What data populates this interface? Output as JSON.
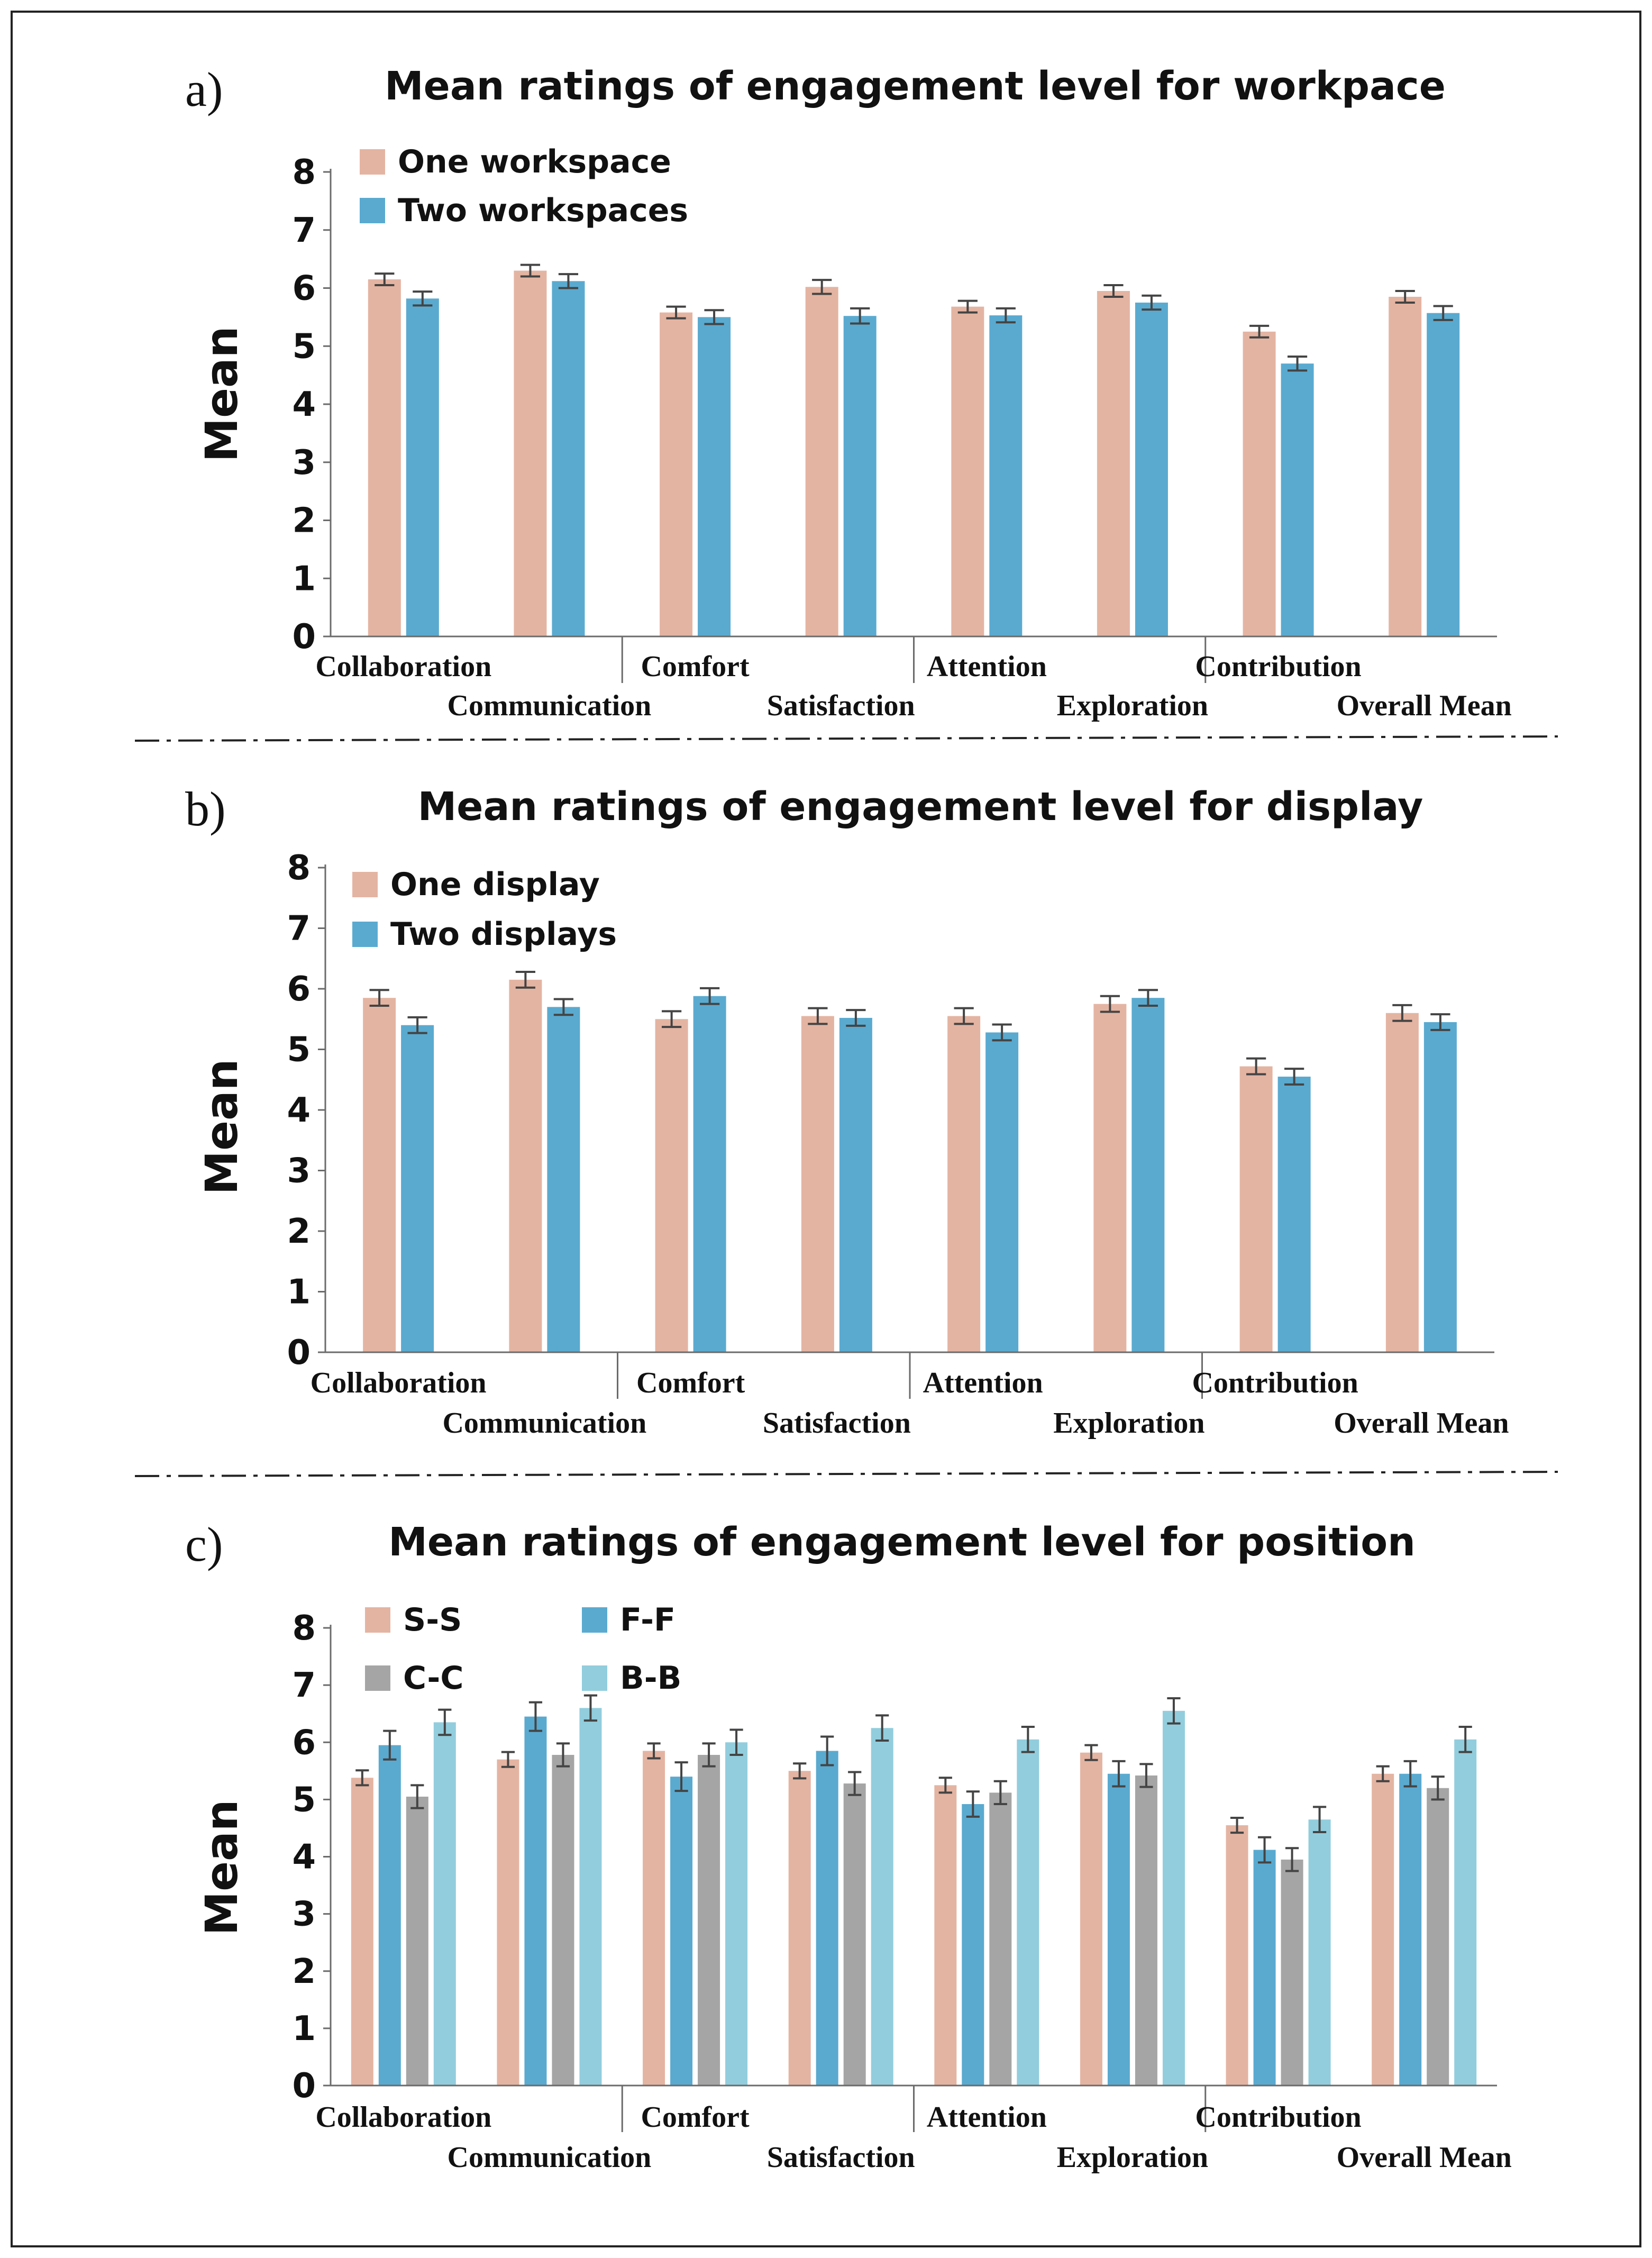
{
  "colors": {
    "one": "#E4B4A2",
    "two": "#5AAAD0",
    "gray": "#A5A5A5",
    "light": "#92CDDD",
    "axis": "#6b6b6b",
    "error": "#444444",
    "frame": "#222222"
  },
  "chart_data": [
    {
      "type": "bar",
      "panel": "a)",
      "title": "Mean ratings of engagement level for workpace",
      "xlabel": "",
      "ylabel": "Mean",
      "ylim": [
        0,
        8
      ],
      "yticks": [
        "0",
        "1",
        "2",
        "3",
        "4",
        "5",
        "6",
        "7",
        "8"
      ],
      "categories": [
        "Collaboration",
        "Communication",
        "Comfort",
        "Satisfaction",
        "Attention",
        "Exploration",
        "Contribution",
        "Overall Mean"
      ],
      "legend_position": "top-left",
      "legend_columns": 1,
      "series": [
        {
          "name": "One workspace",
          "color_key": "one",
          "values": [
            6.15,
            6.3,
            5.58,
            6.02,
            5.68,
            5.95,
            5.25,
            5.85
          ],
          "errors": [
            0.1,
            0.1,
            0.1,
            0.12,
            0.1,
            0.1,
            0.1,
            0.1
          ]
        },
        {
          "name": "Two workspaces",
          "color_key": "two",
          "values": [
            5.82,
            6.12,
            5.5,
            5.52,
            5.53,
            5.75,
            4.7,
            5.57
          ],
          "errors": [
            0.12,
            0.12,
            0.12,
            0.13,
            0.12,
            0.12,
            0.12,
            0.12
          ]
        }
      ]
    },
    {
      "type": "bar",
      "panel": "b)",
      "title": "Mean ratings of engagement level for display",
      "xlabel": "",
      "ylabel": "Mean",
      "ylim": [
        0,
        8
      ],
      "yticks": [
        "0",
        "1",
        "2",
        "3",
        "4",
        "5",
        "6",
        "7",
        "8"
      ],
      "categories": [
        "Collaboration",
        "Communication",
        "Comfort",
        "Satisfaction",
        "Attention",
        "Exploration",
        "Contribution",
        "Overall Mean"
      ],
      "legend_position": "top-left",
      "legend_columns": 1,
      "series": [
        {
          "name": "One display",
          "color_key": "one",
          "values": [
            5.85,
            6.15,
            5.5,
            5.55,
            5.55,
            5.75,
            4.72,
            5.6
          ],
          "errors": [
            0.13,
            0.13,
            0.13,
            0.13,
            0.13,
            0.13,
            0.13,
            0.13
          ]
        },
        {
          "name": "Two displays",
          "color_key": "two",
          "values": [
            5.4,
            5.7,
            5.88,
            5.52,
            5.28,
            5.85,
            4.55,
            5.45
          ],
          "errors": [
            0.13,
            0.13,
            0.13,
            0.13,
            0.13,
            0.13,
            0.13,
            0.13
          ]
        }
      ]
    },
    {
      "type": "bar",
      "panel": "c)",
      "title": "Mean ratings of engagement level for position",
      "xlabel": "",
      "ylabel": "Mean",
      "ylim": [
        0,
        8
      ],
      "yticks": [
        "0",
        "1",
        "2",
        "3",
        "4",
        "5",
        "6",
        "7",
        "8"
      ],
      "categories": [
        "Collaboration",
        "Communication",
        "Comfort",
        "Satisfaction",
        "Attention",
        "Exploration",
        "Contribution",
        "Overall Mean"
      ],
      "legend_position": "top-left",
      "legend_columns": 2,
      "series": [
        {
          "name": "S-S",
          "color_key": "one",
          "values": [
            5.38,
            5.7,
            5.85,
            5.5,
            5.25,
            5.82,
            4.55,
            5.45
          ],
          "errors": [
            0.13,
            0.13,
            0.13,
            0.13,
            0.13,
            0.13,
            0.13,
            0.13
          ]
        },
        {
          "name": "F-F",
          "color_key": "two",
          "values": [
            5.95,
            6.45,
            5.4,
            5.85,
            4.92,
            5.45,
            4.12,
            5.45
          ],
          "errors": [
            0.25,
            0.25,
            0.25,
            0.25,
            0.22,
            0.22,
            0.22,
            0.22
          ]
        },
        {
          "name": "C-C",
          "color_key": "gray",
          "values": [
            5.05,
            5.78,
            5.78,
            5.28,
            5.12,
            5.42,
            3.95,
            5.2
          ],
          "errors": [
            0.2,
            0.2,
            0.2,
            0.2,
            0.2,
            0.2,
            0.2,
            0.2
          ]
        },
        {
          "name": "B-B",
          "color_key": "light",
          "values": [
            6.35,
            6.6,
            6.0,
            6.25,
            6.05,
            6.55,
            4.65,
            6.05
          ],
          "errors": [
            0.22,
            0.22,
            0.22,
            0.22,
            0.22,
            0.22,
            0.22,
            0.22
          ]
        }
      ]
    }
  ]
}
